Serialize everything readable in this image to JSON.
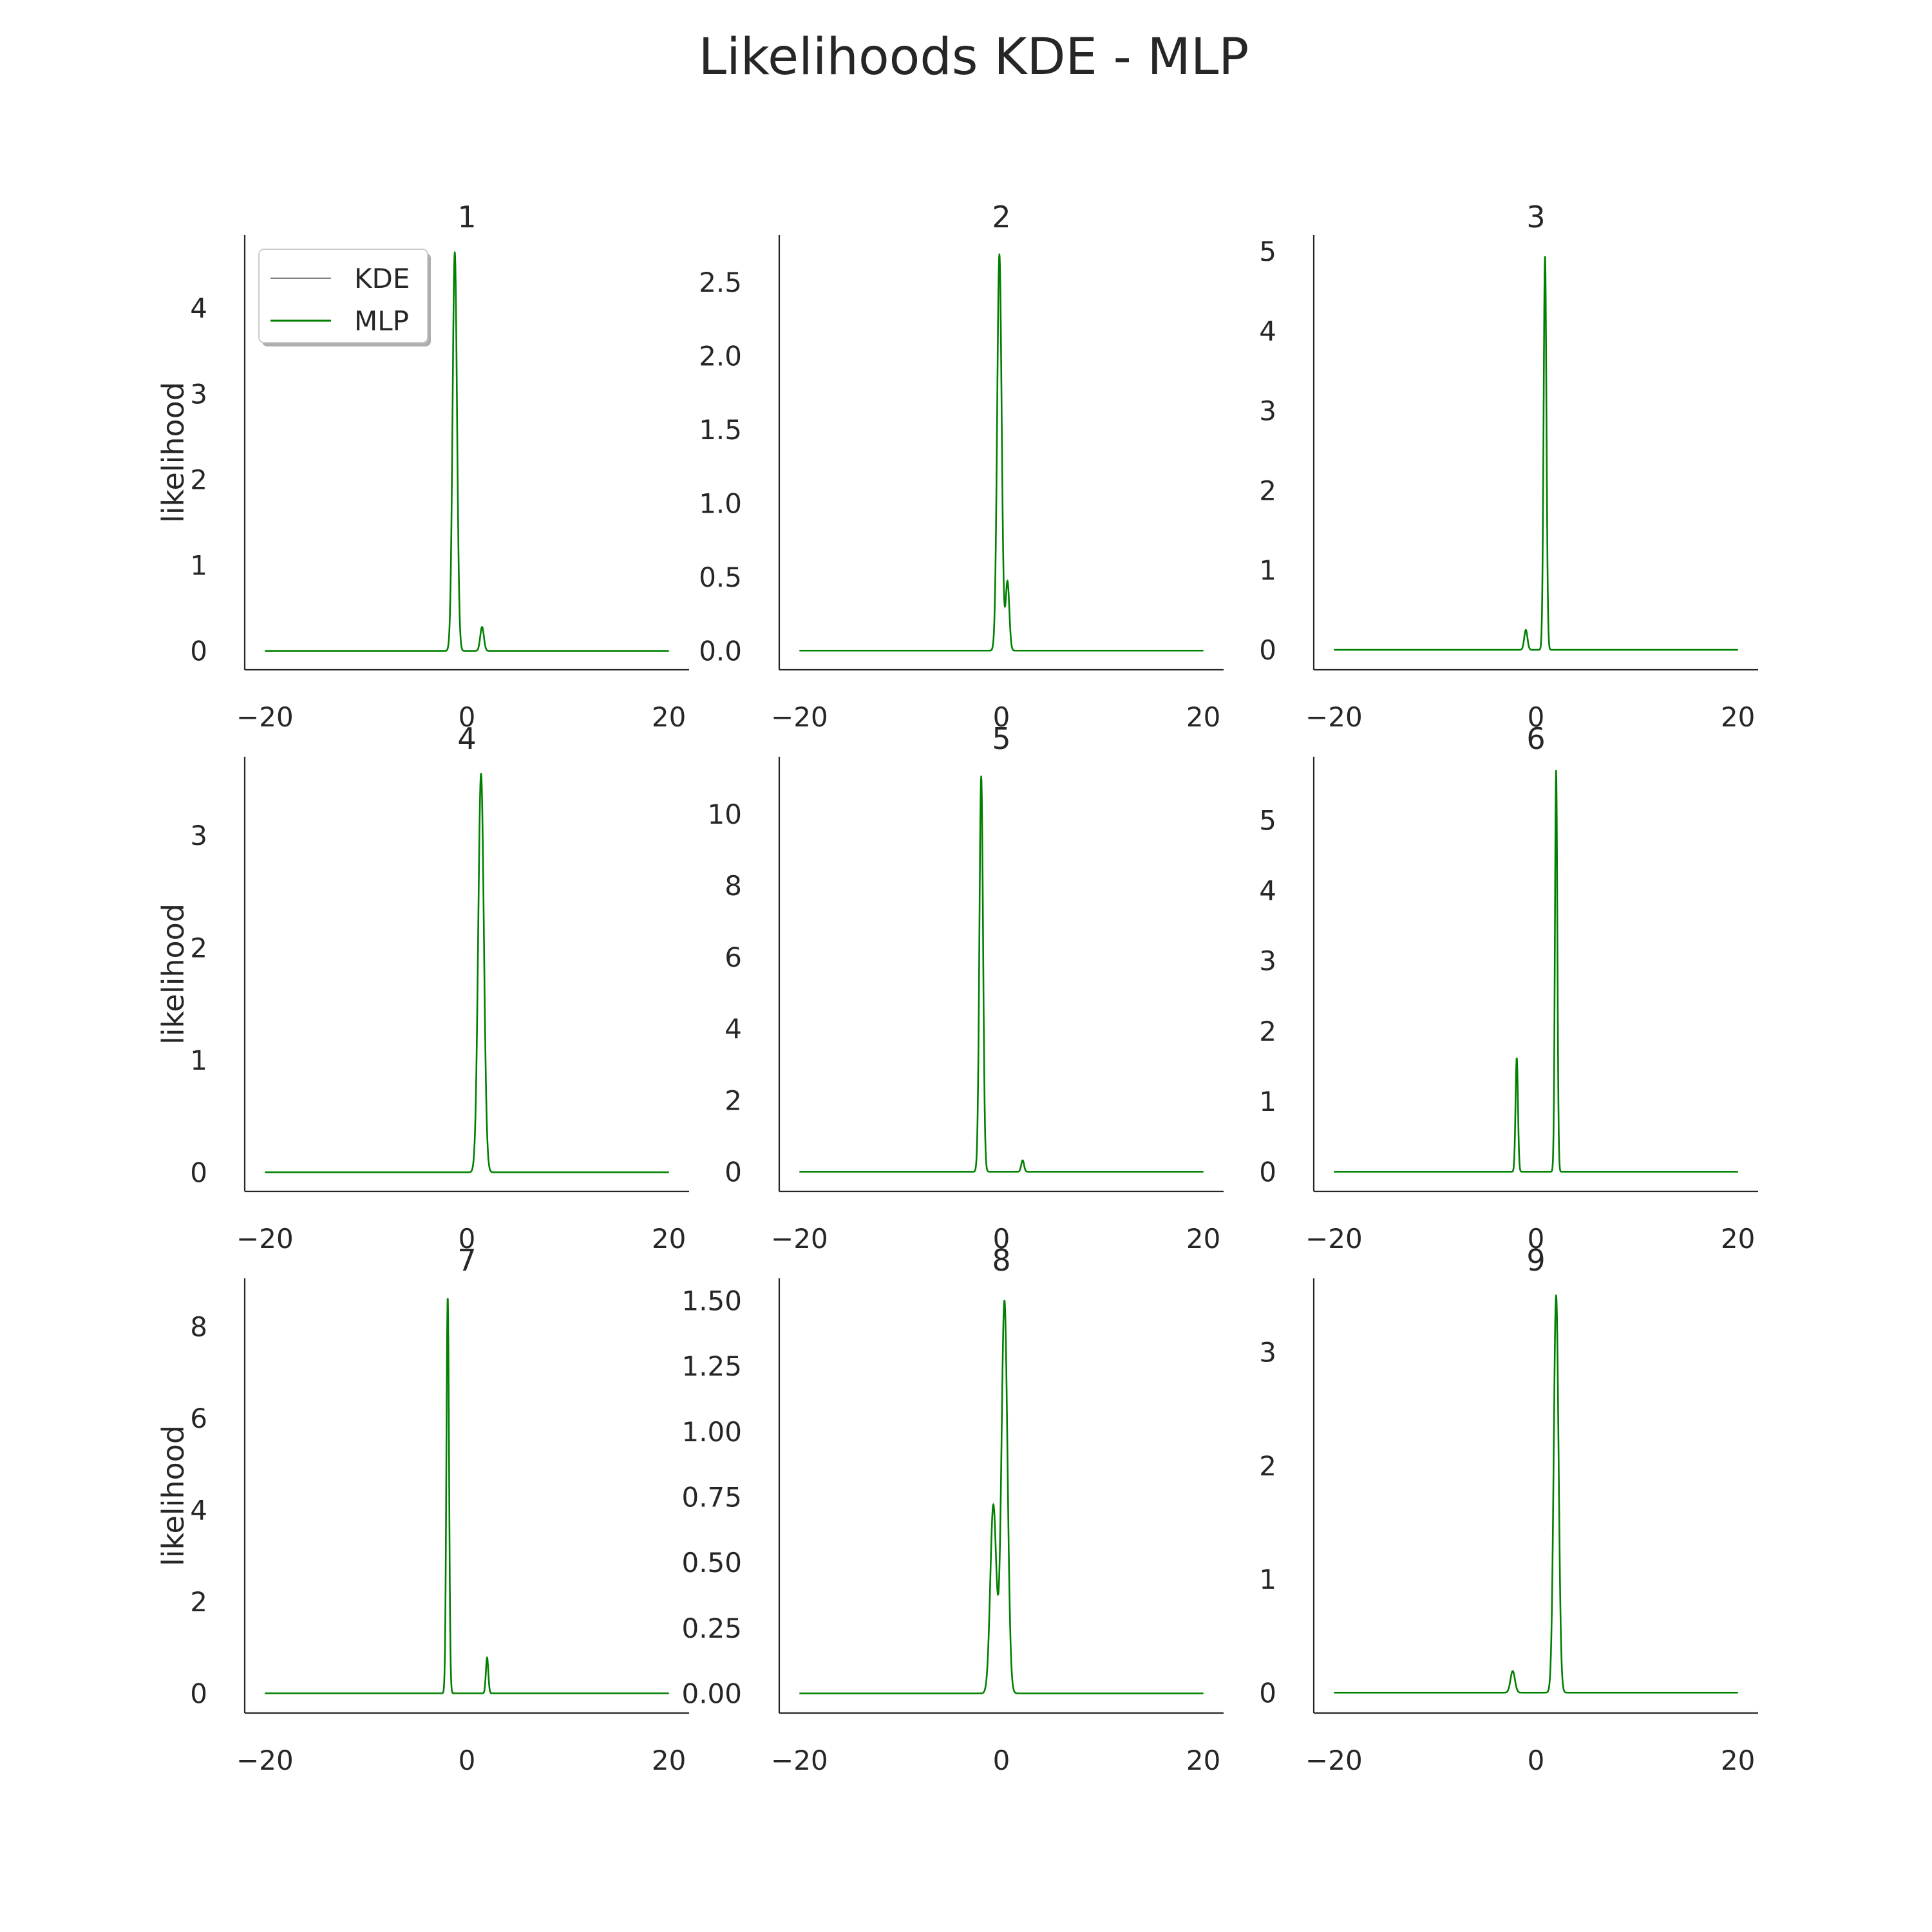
{
  "chart_data": {
    "type": "line",
    "title": "Likelihoods KDE - MLP",
    "ylabel": "likelihood",
    "legend": {
      "placement": "top-left",
      "entries": [
        {
          "name": "KDE",
          "color": "#7f7f7f"
        },
        {
          "name": "MLP",
          "color": "#008000"
        }
      ]
    },
    "grid": false,
    "xlim": [
      -22,
      22
    ],
    "xticks": [
      -20,
      0,
      20
    ],
    "xtick_labels": [
      "−20",
      "0",
      "20"
    ],
    "subplots": [
      {
        "title": "1",
        "ylim": [
          -0.22,
          4.85
        ],
        "yticks": [
          0,
          1,
          2,
          3,
          4
        ],
        "ytick_labels": [
          "0",
          "1",
          "2",
          "3",
          "4"
        ],
        "peaks": [
          {
            "x": -1.2,
            "height": 4.65,
            "width": 0.22
          },
          {
            "x": 1.5,
            "height": 0.28,
            "width": 0.18
          }
        ]
      },
      {
        "title": "2",
        "ylim": [
          -0.13,
          2.82
        ],
        "yticks": [
          0,
          0.5,
          1,
          1.5,
          2,
          2.5
        ],
        "ytick_labels": [
          "0.0",
          "0.5",
          "1.0",
          "1.5",
          "2.0",
          "2.5"
        ],
        "peaks": [
          {
            "x": -0.2,
            "height": 2.69,
            "width": 0.22
          },
          {
            "x": 0.6,
            "height": 0.47,
            "width": 0.18
          }
        ]
      },
      {
        "title": "3",
        "ylim": [
          -0.25,
          5.2
        ],
        "yticks": [
          0,
          1,
          2,
          3,
          4,
          5
        ],
        "ytick_labels": [
          "0",
          "1",
          "2",
          "3",
          "4",
          "5"
        ],
        "peaks": [
          {
            "x": -1.0,
            "height": 0.25,
            "width": 0.16
          },
          {
            "x": 0.9,
            "height": 4.95,
            "width": 0.14
          }
        ]
      },
      {
        "title": "4",
        "ylim": [
          -0.17,
          3.7
        ],
        "yticks": [
          0,
          1,
          2,
          3
        ],
        "ytick_labels": [
          "0",
          "1",
          "2",
          "3"
        ],
        "peaks": [
          {
            "x": 1.4,
            "height": 3.55,
            "width": 0.28
          }
        ]
      },
      {
        "title": "5",
        "ylim": [
          -0.55,
          11.6
        ],
        "yticks": [
          0,
          2,
          4,
          6,
          8,
          10
        ],
        "ytick_labels": [
          "0",
          "2",
          "4",
          "6",
          "8",
          "10"
        ],
        "peaks": [
          {
            "x": -2.0,
            "height": 11.05,
            "width": 0.18
          },
          {
            "x": 2.1,
            "height": 0.32,
            "width": 0.14
          }
        ]
      },
      {
        "title": "6",
        "ylim": [
          -0.28,
          5.9
        ],
        "yticks": [
          0,
          1,
          2,
          3,
          4,
          5
        ],
        "ytick_labels": [
          "0",
          "1",
          "2",
          "3",
          "4",
          "5"
        ],
        "peaks": [
          {
            "x": -1.9,
            "height": 1.62,
            "width": 0.12
          },
          {
            "x": 2.0,
            "height": 5.7,
            "width": 0.12
          }
        ]
      },
      {
        "title": "7",
        "ylim": [
          -0.43,
          9.05
        ],
        "yticks": [
          0,
          2,
          4,
          6,
          8
        ],
        "ytick_labels": [
          "0",
          "2",
          "4",
          "6",
          "8"
        ],
        "peaks": [
          {
            "x": -1.9,
            "height": 8.65,
            "width": 0.13
          },
          {
            "x": 2.0,
            "height": 0.78,
            "width": 0.12
          }
        ]
      },
      {
        "title": "8",
        "ylim": [
          -0.075,
          1.585
        ],
        "yticks": [
          0,
          0.25,
          0.5,
          0.75,
          1,
          1.25,
          1.5
        ],
        "ytick_labels": [
          "0.00",
          "0.25",
          "0.50",
          "0.75",
          "1.00",
          "1.25",
          "1.50"
        ],
        "peaks": [
          {
            "x": -0.8,
            "height": 0.72,
            "width": 0.3
          },
          {
            "x": 0.3,
            "height": 1.5,
            "width": 0.3
          }
        ]
      },
      {
        "title": "9",
        "ylim": [
          -0.18,
          3.65
        ],
        "yticks": [
          0,
          1,
          2,
          3
        ],
        "ytick_labels": [
          "0",
          "1",
          "2",
          "3"
        ],
        "peaks": [
          {
            "x": -2.3,
            "height": 0.19,
            "width": 0.22
          },
          {
            "x": 2.0,
            "height": 3.5,
            "width": 0.24
          }
        ]
      }
    ]
  }
}
